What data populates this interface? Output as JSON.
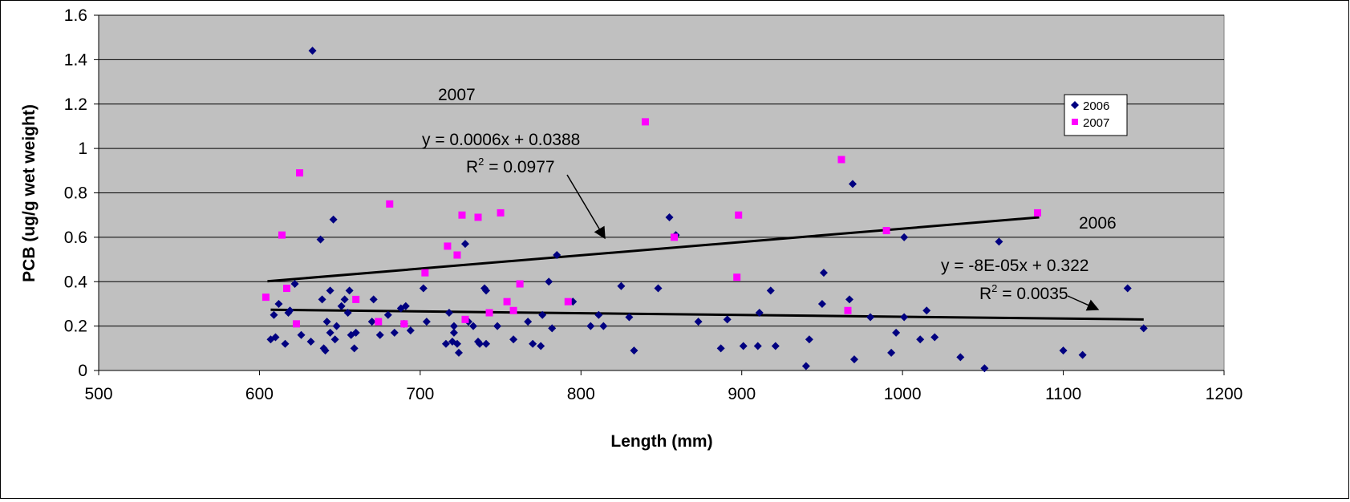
{
  "chart_data": {
    "type": "scatter",
    "xlabel": "Length (mm)",
    "ylabel": "PCB (ug/g wet weight)",
    "xlim": [
      500,
      1200
    ],
    "ylim": [
      0,
      1.6
    ],
    "x_ticks": [
      "500",
      "600",
      "700",
      "800",
      "900",
      "1000",
      "1100",
      "1200"
    ],
    "y_ticks": [
      "0",
      "0.2",
      "0.4",
      "0.6",
      "0.8",
      "1",
      "1.2",
      "1.4",
      "1.6"
    ],
    "grid": "horizontal",
    "plot_background": "#c0c0c0",
    "legend": {
      "placement": "top-right",
      "entries": [
        "2006",
        "2007"
      ]
    },
    "series": [
      {
        "name": "2006",
        "marker": "diamond",
        "color": "#000080",
        "points": [
          [
            607,
            0.14
          ],
          [
            609,
            0.25
          ],
          [
            610,
            0.15
          ],
          [
            612,
            0.3
          ],
          [
            616,
            0.12
          ],
          [
            618,
            0.26
          ],
          [
            619,
            0.27
          ],
          [
            622,
            0.39
          ],
          [
            626,
            0.16
          ],
          [
            632,
            0.13
          ],
          [
            633,
            1.44
          ],
          [
            638,
            0.59
          ],
          [
            639,
            0.32
          ],
          [
            640,
            0.1
          ],
          [
            641,
            0.09
          ],
          [
            642,
            0.22
          ],
          [
            644,
            0.36
          ],
          [
            644,
            0.17
          ],
          [
            646,
            0.68
          ],
          [
            647,
            0.14
          ],
          [
            648,
            0.2
          ],
          [
            651,
            0.29
          ],
          [
            653,
            0.32
          ],
          [
            655,
            0.26
          ],
          [
            656,
            0.36
          ],
          [
            657,
            0.16
          ],
          [
            659,
            0.1
          ],
          [
            660,
            0.17
          ],
          [
            670,
            0.22
          ],
          [
            671,
            0.32
          ],
          [
            675,
            0.16
          ],
          [
            680,
            0.25
          ],
          [
            684,
            0.17
          ],
          [
            688,
            0.28
          ],
          [
            690,
            0.21
          ],
          [
            691,
            0.29
          ],
          [
            694,
            0.18
          ],
          [
            702,
            0.37
          ],
          [
            704,
            0.22
          ],
          [
            716,
            0.12
          ],
          [
            718,
            0.26
          ],
          [
            720,
            0.13
          ],
          [
            721,
            0.17
          ],
          [
            721,
            0.2
          ],
          [
            723,
            0.12
          ],
          [
            724,
            0.08
          ],
          [
            728,
            0.57
          ],
          [
            730,
            0.22
          ],
          [
            733,
            0.2
          ],
          [
            736,
            0.13
          ],
          [
            737,
            0.12
          ],
          [
            740,
            0.37
          ],
          [
            741,
            0.36
          ],
          [
            741,
            0.12
          ],
          [
            748,
            0.2
          ],
          [
            758,
            0.14
          ],
          [
            767,
            0.22
          ],
          [
            770,
            0.12
          ],
          [
            775,
            0.11
          ],
          [
            776,
            0.25
          ],
          [
            780,
            0.4
          ],
          [
            782,
            0.19
          ],
          [
            785,
            0.52
          ],
          [
            795,
            0.31
          ],
          [
            806,
            0.2
          ],
          [
            811,
            0.25
          ],
          [
            814,
            0.2
          ],
          [
            825,
            0.38
          ],
          [
            830,
            0.24
          ],
          [
            833,
            0.09
          ],
          [
            848,
            0.37
          ],
          [
            855,
            0.69
          ],
          [
            859,
            0.61
          ],
          [
            873,
            0.22
          ],
          [
            887,
            0.1
          ],
          [
            891,
            0.23
          ],
          [
            901,
            0.11
          ],
          [
            910,
            0.11
          ],
          [
            911,
            0.26
          ],
          [
            918,
            0.36
          ],
          [
            921,
            0.11
          ],
          [
            940,
            0.02
          ],
          [
            942,
            0.14
          ],
          [
            950,
            0.3
          ],
          [
            951,
            0.44
          ],
          [
            967,
            0.32
          ],
          [
            969,
            0.84
          ],
          [
            970,
            0.05
          ],
          [
            980,
            0.24
          ],
          [
            993,
            0.08
          ],
          [
            996,
            0.17
          ],
          [
            1001,
            0.6
          ],
          [
            1001,
            0.24
          ],
          [
            1011,
            0.14
          ],
          [
            1015,
            0.27
          ],
          [
            1020,
            0.15
          ],
          [
            1036,
            0.06
          ],
          [
            1051,
            0.01
          ],
          [
            1060,
            0.58
          ],
          [
            1100,
            0.09
          ],
          [
            1112,
            0.07
          ],
          [
            1140,
            0.37
          ],
          [
            1150,
            0.19
          ]
        ]
      },
      {
        "name": "2007",
        "marker": "square",
        "color": "#ff00ff",
        "points": [
          [
            604,
            0.33
          ],
          [
            614,
            0.61
          ],
          [
            617,
            0.37
          ],
          [
            623,
            0.21
          ],
          [
            625,
            0.89
          ],
          [
            660,
            0.32
          ],
          [
            674,
            0.22
          ],
          [
            681,
            0.75
          ],
          [
            690,
            0.21
          ],
          [
            703,
            0.44
          ],
          [
            717,
            0.56
          ],
          [
            723,
            0.52
          ],
          [
            726,
            0.7
          ],
          [
            728,
            0.23
          ],
          [
            736,
            0.69
          ],
          [
            743,
            0.26
          ],
          [
            750,
            0.71
          ],
          [
            754,
            0.31
          ],
          [
            758,
            0.27
          ],
          [
            762,
            0.39
          ],
          [
            792,
            0.31
          ],
          [
            840,
            1.12
          ],
          [
            858,
            0.6
          ],
          [
            897,
            0.42
          ],
          [
            898,
            0.7
          ],
          [
            962,
            0.95
          ],
          [
            966,
            0.27
          ],
          [
            990,
            0.63
          ],
          [
            1084,
            0.71
          ]
        ]
      }
    ],
    "trendlines": [
      {
        "series": "2007",
        "x_range": [
          605,
          1085
        ],
        "equation": "y = 0.0006x + 0.0388",
        "r2_prefix": "R",
        "r2_sup": "2",
        "r2_value": " = 0.0977",
        "label": "2007"
      },
      {
        "series": "2006",
        "x_range": [
          607,
          1150
        ],
        "equation": "y = -8E-05x + 0.322",
        "r2_prefix": "R",
        "r2_sup": "2",
        "r2_value": " = 0.0035",
        "label": "2006"
      }
    ]
  }
}
